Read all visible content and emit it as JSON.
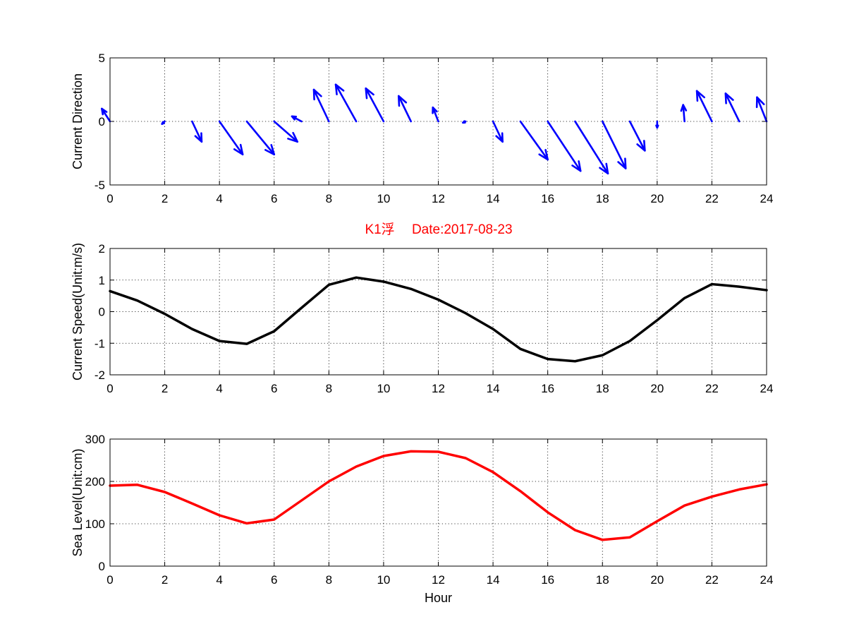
{
  "title": "K1浮　 Date:2017-08-23",
  "colors": {
    "direction": "#0000FF",
    "speed": "#000000",
    "sea_level": "#FF0000",
    "title": "#FF0000"
  },
  "chart_data": [
    {
      "type": "quiver",
      "name": "direction",
      "ylabel": "Current Direction",
      "xlabel": "",
      "xlim": [
        0,
        24
      ],
      "ylim": [
        -5,
        5
      ],
      "x_ticks": [
        0,
        2,
        4,
        6,
        8,
        10,
        12,
        14,
        16,
        18,
        20,
        22,
        24
      ],
      "y_ticks": [
        -5,
        0,
        5
      ],
      "grid": true,
      "x": [
        0,
        1,
        2,
        3,
        4,
        5,
        6,
        7,
        8,
        9,
        10,
        11,
        12,
        13,
        14,
        15,
        16,
        17,
        18,
        19,
        20,
        21,
        22,
        23,
        24
      ],
      "u": [
        -0.3,
        0,
        -0.1,
        0.35,
        0.85,
        1.0,
        0.85,
        -0.35,
        -0.55,
        -0.75,
        -0.65,
        -0.45,
        -0.2,
        -0.1,
        0.35,
        1.0,
        1.2,
        1.2,
        0.85,
        0.55,
        0.0,
        -0.05,
        -0.55,
        -0.5,
        -0.35
      ],
      "v": [
        1.0,
        0,
        -0.2,
        -1.6,
        -2.6,
        -2.6,
        -1.6,
        0.4,
        2.5,
        2.9,
        2.6,
        2.0,
        1.1,
        -0.1,
        -1.6,
        -3.0,
        -3.9,
        -4.1,
        -3.7,
        -2.3,
        -0.5,
        1.3,
        2.4,
        2.2,
        1.9
      ]
    },
    {
      "type": "line",
      "name": "speed",
      "ylabel": "Current Speed(Unit:m/s)",
      "xlabel": "",
      "xlim": [
        0,
        24
      ],
      "ylim": [
        -2,
        2
      ],
      "x_ticks": [
        0,
        2,
        4,
        6,
        8,
        10,
        12,
        14,
        16,
        18,
        20,
        22,
        24
      ],
      "y_ticks": [
        -2,
        -1,
        0,
        1,
        2
      ],
      "grid": true,
      "x": [
        0,
        1,
        2,
        3,
        4,
        5,
        6,
        7,
        8,
        9,
        10,
        11,
        12,
        13,
        14,
        15,
        16,
        17,
        18,
        19,
        20,
        21,
        22,
        23,
        24
      ],
      "y": [
        0.65,
        0.35,
        -0.07,
        -0.55,
        -0.93,
        -1.02,
        -0.62,
        0.12,
        0.85,
        1.08,
        0.95,
        0.72,
        0.38,
        -0.05,
        -0.55,
        -1.18,
        -1.5,
        -1.57,
        -1.38,
        -0.93,
        -0.27,
        0.43,
        0.87,
        0.79,
        0.68
      ]
    },
    {
      "type": "line",
      "name": "sea-level",
      "ylabel": "Sea Level(Unit:cm)",
      "xlabel": "Hour",
      "xlim": [
        0,
        24
      ],
      "ylim": [
        0,
        300
      ],
      "x_ticks": [
        0,
        2,
        4,
        6,
        8,
        10,
        12,
        14,
        16,
        18,
        20,
        22,
        24
      ],
      "y_ticks": [
        0,
        100,
        200,
        300
      ],
      "grid": true,
      "x": [
        0,
        1,
        2,
        3,
        4,
        5,
        6,
        7,
        8,
        9,
        10,
        11,
        12,
        13,
        14,
        15,
        16,
        17,
        18,
        19,
        20,
        21,
        22,
        23,
        24
      ],
      "y": [
        190,
        192,
        175,
        148,
        120,
        101,
        110,
        155,
        200,
        235,
        260,
        271,
        270,
        255,
        222,
        177,
        127,
        85,
        62,
        68,
        106,
        143,
        164,
        181,
        193
      ]
    }
  ]
}
